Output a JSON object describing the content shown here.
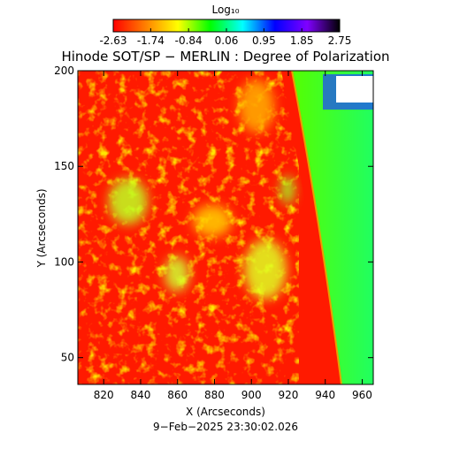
{
  "chart_data": {
    "type": "image",
    "title": "Hinode SOT/SP − MERLIN : Degree of Polarization",
    "xlabel": "X (Arcseconds)",
    "ylabel": "Y (Arcseconds)",
    "footer": "9−Feb−2025 23:30:02.026",
    "xlim": [
      806,
      966
    ],
    "ylim": [
      36,
      200
    ],
    "xticks": [
      820,
      840,
      860,
      880,
      900,
      920,
      940,
      960
    ],
    "yticks": [
      50,
      100,
      150,
      200
    ],
    "colorbar": {
      "label": "Log₁₀",
      "lim": [
        -2.63,
        2.75
      ],
      "ticks": [
        -2.63,
        -1.74,
        -0.84,
        0.06,
        0.95,
        1.85,
        2.75
      ],
      "colors": [
        "#ff0000",
        "#ff8000",
        "#ffff00",
        "#00ff00",
        "#00ffff",
        "#0000ff",
        "#8000ff",
        "#000000"
      ]
    }
  }
}
